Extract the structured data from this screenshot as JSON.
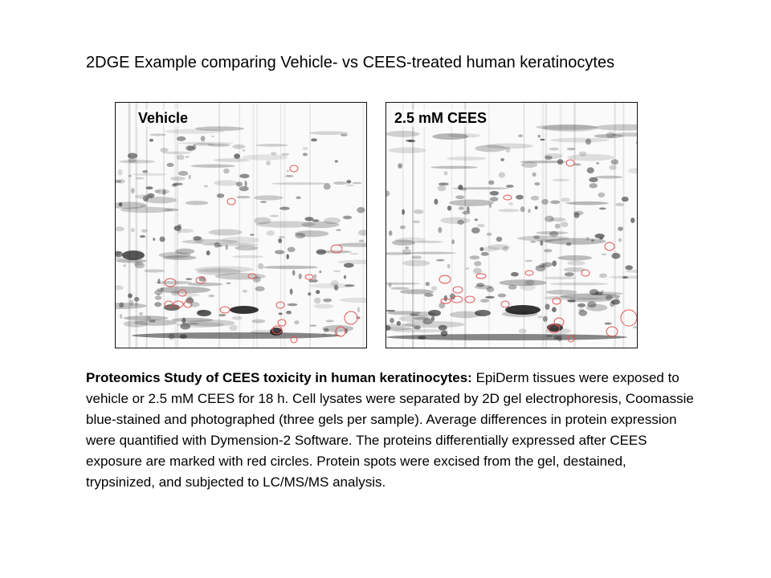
{
  "title": "2DGE Example comparing Vehicle- vs CEES-treated human keratinocytes",
  "panels": [
    {
      "label": "Vehicle"
    },
    {
      "label": "2.5 mM CEES"
    }
  ],
  "caption": {
    "lead": "Proteomics Study of CEES toxicity in human keratinocytes:",
    "body": " EpiDerm tissues were exposed to vehicle or 2.5 mM CEES for 18 h. Cell lysates were separated by 2D gel electrophoresis, Coomassie blue-stained and photographed (three gels per sample). Average differences in protein expression were quantified with Dymension-2 Software. The proteins differentially expressed after CEES exposure are marked with red circles. Protein spots were excised from the gel, destained, trypsinized, and subjected to LC/MS/MS analysis."
  },
  "colors": {
    "marker": "#e05555",
    "spot": "#2a2a2a"
  }
}
